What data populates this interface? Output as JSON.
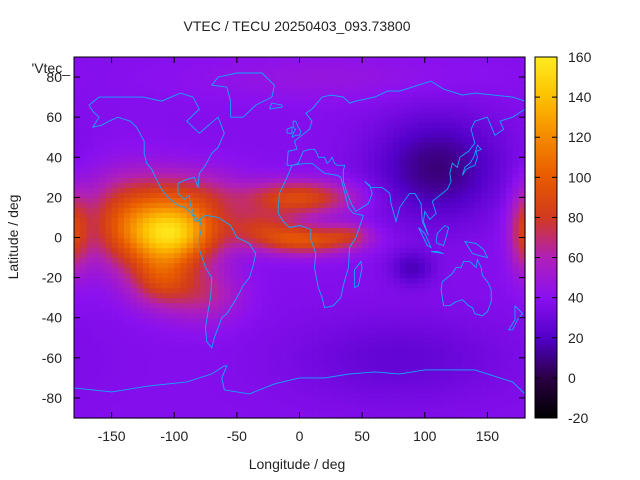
{
  "chart_data": {
    "type": "heatmap",
    "title": "VTEC / TECU 20250403_093.73800",
    "xlabel": "Longitude / deg",
    "ylabel": "Latitude / deg",
    "key_label": "'Vtec_",
    "xlim": [
      -180,
      180
    ],
    "ylim": [
      -90,
      90
    ],
    "xticks": [
      -150,
      -100,
      -50,
      0,
      50,
      100,
      150
    ],
    "yticks": [
      -80,
      -60,
      -40,
      -20,
      0,
      20,
      40,
      60,
      80
    ],
    "colorbar": {
      "range": [
        -20,
        160
      ],
      "ticks": [
        -20,
        0,
        20,
        40,
        60,
        80,
        100,
        120,
        140,
        160
      ]
    },
    "field": {
      "background": 38,
      "blobs": [
        {
          "lon": -100,
          "lat": 2,
          "slon": 25,
          "slat": 10,
          "amp": 95
        },
        {
          "lon": -110,
          "lat": -20,
          "slon": 18,
          "slat": 10,
          "amp": 45
        },
        {
          "lon": -140,
          "lat": 8,
          "slon": 25,
          "slat": 16,
          "amp": 45
        },
        {
          "lon": -90,
          "lat": 20,
          "slon": 30,
          "slat": 10,
          "amp": 35
        },
        {
          "lon": -75,
          "lat": -28,
          "slon": 20,
          "slat": 10,
          "amp": 25
        },
        {
          "lon": 0,
          "lat": 20,
          "slon": 30,
          "slat": 6,
          "amp": 52
        },
        {
          "lon": -30,
          "lat": 6,
          "slon": 20,
          "slat": 6,
          "amp": 30
        },
        {
          "lon": 5,
          "lat": -1,
          "slon": 28,
          "slat": 5,
          "amp": 55
        },
        {
          "lon": 40,
          "lat": 2,
          "slon": 12,
          "slat": 4,
          "amp": 20
        },
        {
          "lon": 180,
          "lat": 3,
          "slon": 8,
          "slat": 14,
          "amp": 38
        },
        {
          "lon": 110,
          "lat": 35,
          "slon": 35,
          "slat": 18,
          "amp": -30
        },
        {
          "lon": 90,
          "lat": -15,
          "slon": 12,
          "slat": 6,
          "amp": -20
        },
        {
          "lon": 80,
          "lat": -60,
          "slon": 60,
          "slat": 15,
          "amp": -12
        },
        {
          "lon": 20,
          "lat": 80,
          "slon": 80,
          "slat": 8,
          "amp": 8
        }
      ]
    }
  }
}
